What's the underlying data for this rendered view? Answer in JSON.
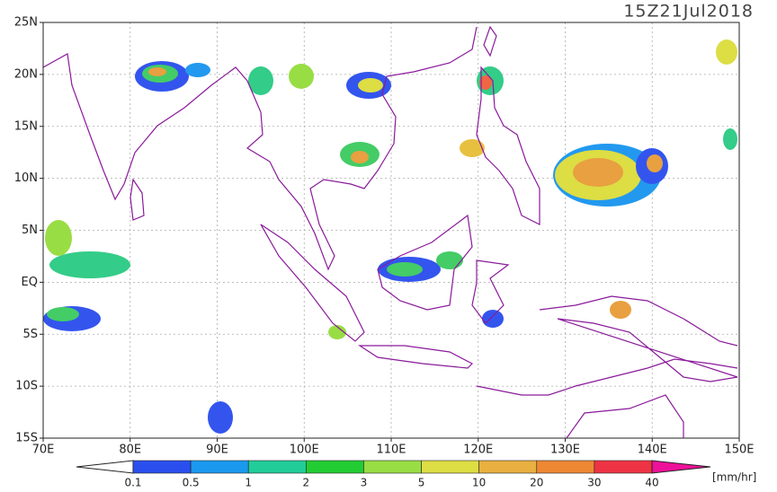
{
  "title": "15Z21Jul2018",
  "lat_labels": [
    "25N",
    "20N",
    "15N",
    "10N",
    "5N",
    "EQ",
    "5S",
    "10S",
    "15S"
  ],
  "lon_labels": [
    "70E",
    "80E",
    "90E",
    "100E",
    "110E",
    "120E",
    "130E",
    "140E",
    "150E"
  ],
  "colorbar": {
    "labels": [
      "0.1",
      "0.5",
      "1",
      "2",
      "3",
      "5",
      "10",
      "20",
      "30",
      "40"
    ],
    "units": "[mm/hr]"
  }
}
